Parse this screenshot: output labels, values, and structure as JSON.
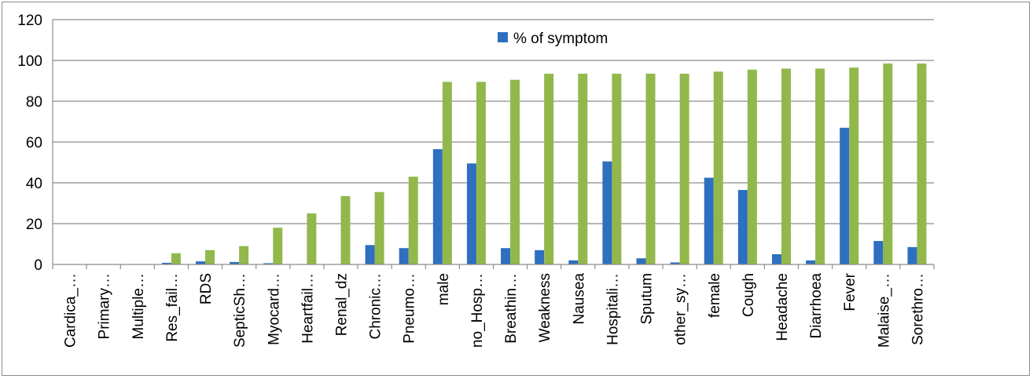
{
  "chart_data": {
    "type": "bar",
    "categories": [
      "Cardica_…",
      "Primary…",
      "Multiple…",
      "Res_fail…",
      "RDS",
      "SepticSh…",
      "Myocard…",
      "Heartfail…",
      "Renal_dz",
      "Chronic…",
      "Pneumo…",
      "male",
      "no_Hosp…",
      "Breathin…",
      "Weakness",
      "Nausea",
      "Hospitali…",
      "Sputum",
      "other_sy…",
      "female",
      "Cough",
      "Headache",
      "Diarrhoea",
      "Fever",
      "Malaise_…",
      "Sorethro…"
    ],
    "series": [
      {
        "name": "% of symptom",
        "color": "#2e6fbf",
        "values": [
          0,
          0,
          0,
          0.8,
          1.5,
          1.2,
          0.6,
          0,
          0,
          9.5,
          8,
          56.5,
          49.5,
          8,
          7,
          2,
          50.5,
          3,
          1,
          42.5,
          36.5,
          5,
          2,
          67,
          11.5,
          8.5
        ]
      },
      {
        "color": "#92b84c",
        "values": [
          0,
          0,
          0,
          5.5,
          7,
          9,
          18,
          25,
          33.5,
          35.5,
          43,
          89.5,
          89.5,
          90.5,
          93.5,
          93.5,
          93.5,
          93.5,
          93.5,
          94.5,
          95.5,
          96,
          96,
          96.5,
          98.5,
          98.5
        ]
      }
    ],
    "ylim": [
      0,
      120
    ],
    "yticks": [
      "0",
      "20",
      "40",
      "60",
      "80",
      "100",
      "120"
    ],
    "grid": true,
    "legend_position": "top-center"
  }
}
